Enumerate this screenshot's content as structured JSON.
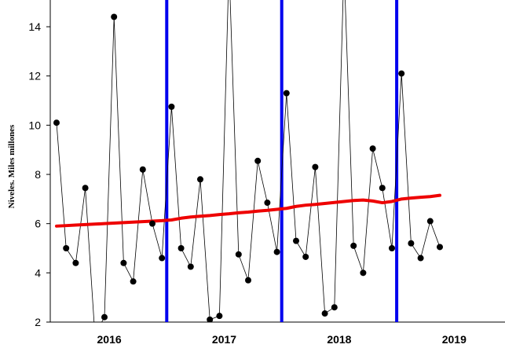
{
  "chart_data": {
    "type": "line",
    "ylabel": "Niveles. Miles millones",
    "ylim": [
      2,
      15
    ],
    "yticks": [
      2,
      4,
      6,
      8,
      10,
      12,
      14
    ],
    "x_start": "2016-01",
    "x_end": "2019-12",
    "year_labels": [
      "2016",
      "2017",
      "2018",
      "2019"
    ],
    "series": [
      {
        "role": "observed",
        "style": "black line with dot markers",
        "values": [
          10.1,
          5.0,
          4.4,
          7.45,
          1.5,
          2.2,
          14.4,
          4.4,
          3.65,
          8.2,
          6.0,
          4.6,
          10.75,
          5.0,
          4.25,
          7.8,
          2.1,
          2.25,
          16.5,
          4.75,
          3.7,
          8.55,
          6.85,
          4.85,
          11.3,
          5.3,
          4.65,
          8.3,
          2.35,
          2.6,
          16.5,
          5.1,
          4.0,
          9.05,
          7.45,
          5.0,
          12.1,
          5.2,
          4.6,
          6.1,
          5.05
        ]
      },
      {
        "role": "trend",
        "style": "thick red line",
        "values": [
          5.9,
          5.92,
          5.94,
          5.96,
          5.98,
          6.0,
          6.02,
          6.04,
          6.06,
          6.08,
          6.1,
          6.12,
          6.15,
          6.22,
          6.27,
          6.3,
          6.33,
          6.37,
          6.4,
          6.44,
          6.47,
          6.51,
          6.54,
          6.58,
          6.62,
          6.7,
          6.75,
          6.78,
          6.82,
          6.86,
          6.9,
          6.94,
          6.96,
          6.92,
          6.85,
          6.9,
          7.0,
          7.04,
          7.07,
          7.1,
          7.15
        ]
      }
    ],
    "year_dividers": [
      "2017-01",
      "2018-01",
      "2019-01"
    ],
    "divider_color": "#0000ee",
    "trend_color": "#ee0000",
    "observed_color": "#000000",
    "grid": false
  }
}
